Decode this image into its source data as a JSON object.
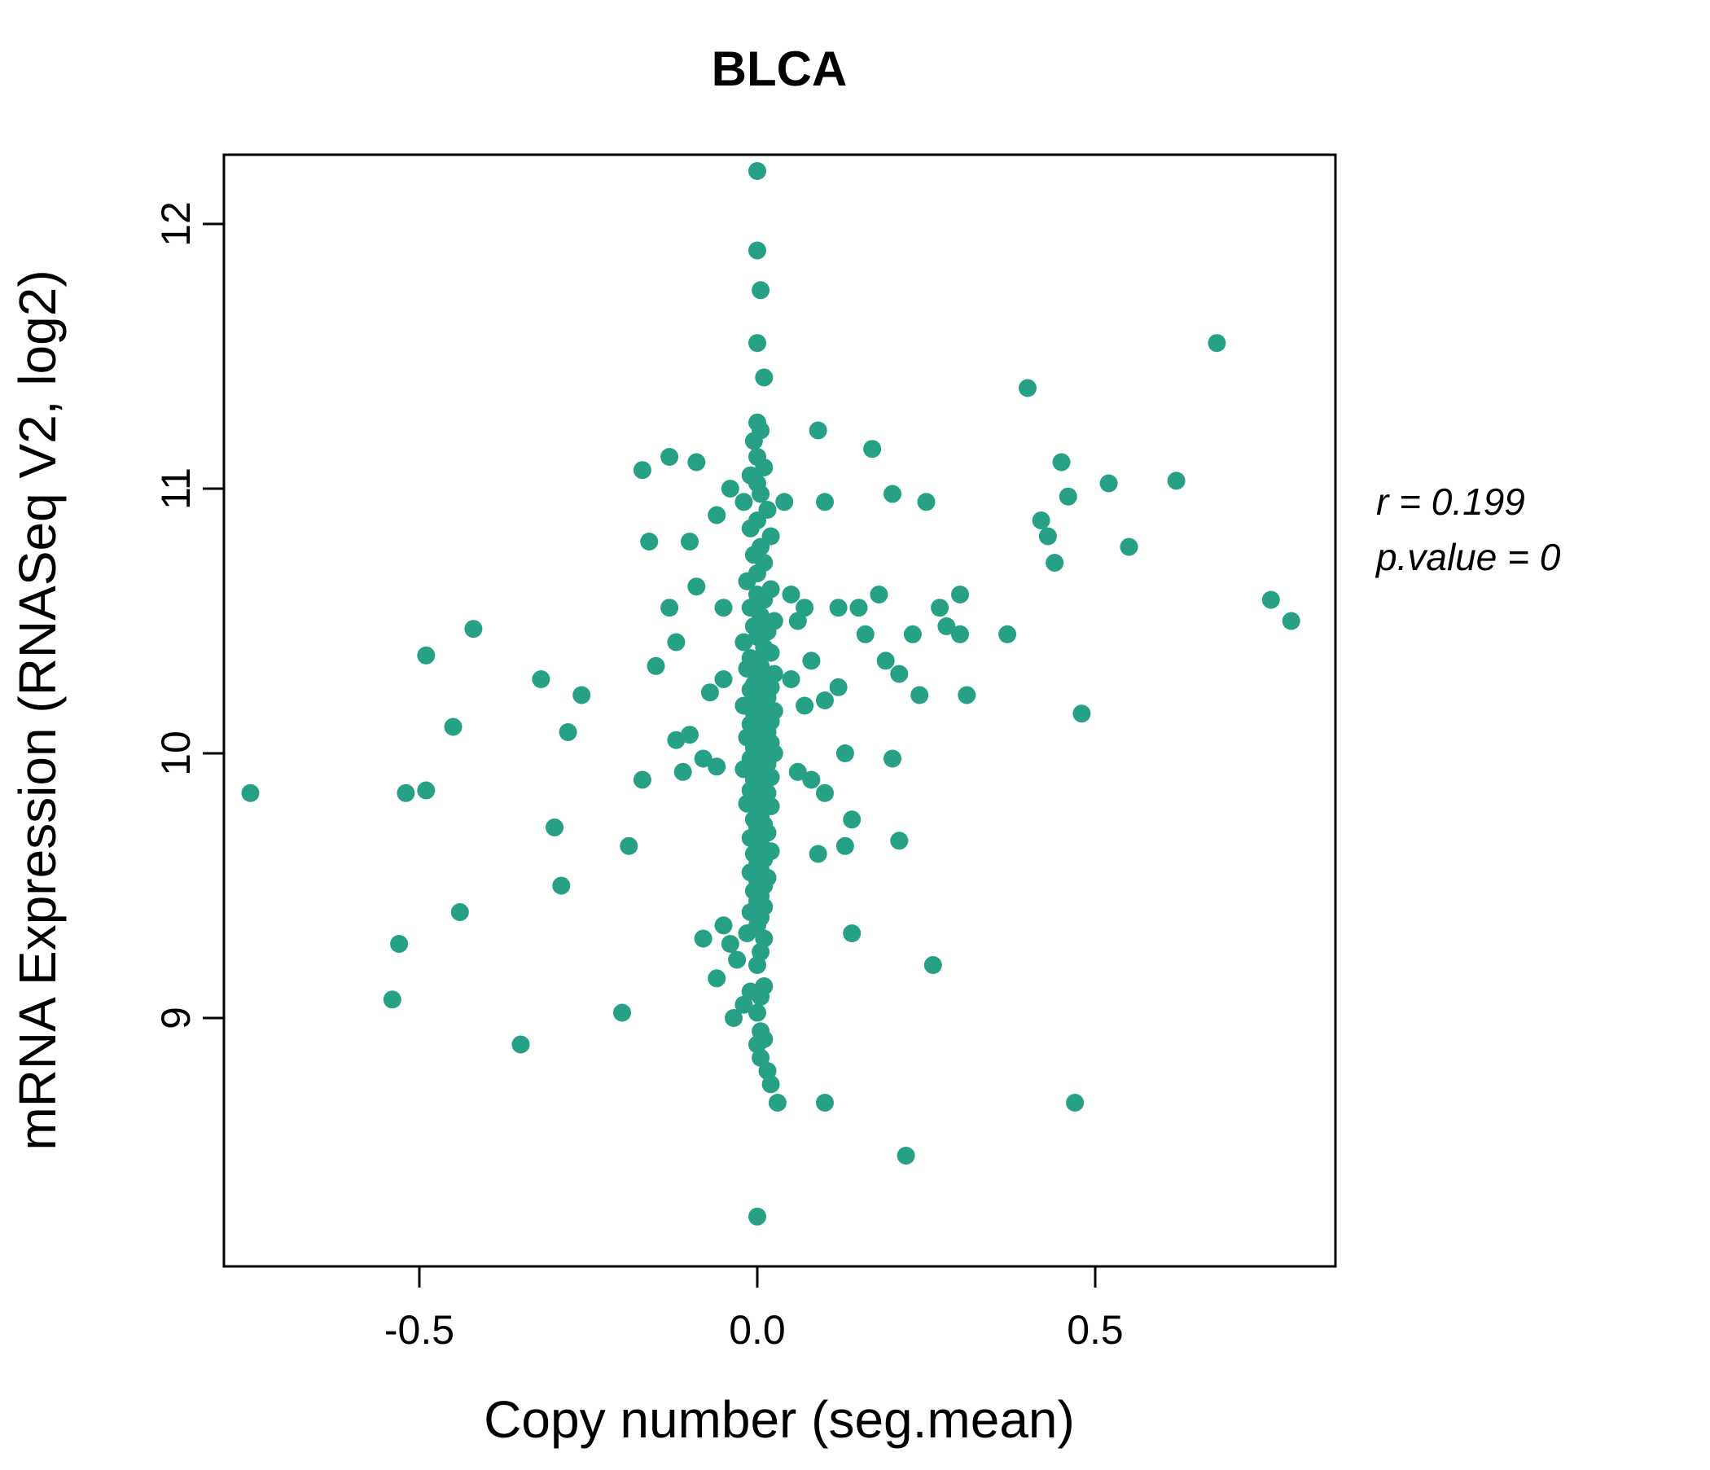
{
  "chart_data": {
    "type": "scatter",
    "title": "BLCA",
    "title_color": "#26a185",
    "xlabel": "Copy number (seg.mean)",
    "ylabel": "mRNA Expression (RNASeq V2, log2)",
    "x_ticks": [
      -0.5,
      0.0,
      0.5
    ],
    "x_tick_labels": [
      "-0.5",
      "0.0",
      "0.5"
    ],
    "y_ticks": [
      9,
      10,
      11,
      12
    ],
    "y_tick_labels": [
      "9",
      "10",
      "11",
      "12"
    ],
    "xlim": [
      -0.79,
      0.86
    ],
    "ylim": [
      8.06,
      12.26
    ],
    "grid": false,
    "legend": "none",
    "point_color": "#26a185",
    "annotation": {
      "r_label": "r = 0.199",
      "p_label": "p.value = 0"
    },
    "points": [
      [
        0,
        12.2
      ],
      [
        0,
        11.9
      ],
      [
        0.005,
        11.75
      ],
      [
        0,
        11.55
      ],
      [
        0.01,
        11.42
      ],
      [
        0,
        11.25
      ],
      [
        0.005,
        11.22
      ],
      [
        -0.005,
        11.18
      ],
      [
        0,
        11.12
      ],
      [
        0.01,
        11.08
      ],
      [
        -0.01,
        11.05
      ],
      [
        0,
        11.02
      ],
      [
        0.005,
        10.98
      ],
      [
        -0.02,
        10.95
      ],
      [
        0.015,
        10.92
      ],
      [
        0,
        10.88
      ],
      [
        -0.01,
        10.85
      ],
      [
        0.02,
        10.82
      ],
      [
        0.005,
        10.78
      ],
      [
        -0.005,
        10.75
      ],
      [
        0.01,
        10.72
      ],
      [
        0,
        10.68
      ],
      [
        -0.015,
        10.65
      ],
      [
        0.02,
        10.62
      ],
      [
        0,
        10.6
      ],
      [
        0.01,
        10.58
      ],
      [
        -0.01,
        10.55
      ],
      [
        0.005,
        10.52
      ],
      [
        0.025,
        10.5
      ],
      [
        -0.005,
        10.48
      ],
      [
        0.015,
        10.46
      ],
      [
        0,
        10.44
      ],
      [
        -0.02,
        10.42
      ],
      [
        0.01,
        10.4
      ],
      [
        0.02,
        10.38
      ],
      [
        -0.01,
        10.36
      ],
      [
        0,
        10.35
      ],
      [
        0.005,
        10.33
      ],
      [
        -0.015,
        10.32
      ],
      [
        0.025,
        10.3
      ],
      [
        0,
        10.29
      ],
      [
        0.01,
        10.28
      ],
      [
        -0.005,
        10.26
      ],
      [
        0.02,
        10.25
      ],
      [
        -0.01,
        10.24
      ],
      [
        0.005,
        10.22
      ],
      [
        0.015,
        10.21
      ],
      [
        0,
        10.2
      ],
      [
        -0.02,
        10.18
      ],
      [
        0.01,
        10.17
      ],
      [
        0.025,
        10.16
      ],
      [
        -0.005,
        10.15
      ],
      [
        0,
        10.14
      ],
      [
        0.02,
        10.12
      ],
      [
        -0.01,
        10.11
      ],
      [
        0.005,
        10.1
      ],
      [
        0.015,
        10.08
      ],
      [
        0,
        10.07
      ],
      [
        -0.015,
        10.06
      ],
      [
        0.01,
        10.05
      ],
      [
        0.02,
        10.04
      ],
      [
        -0.005,
        10.02
      ],
      [
        0,
        10.01
      ],
      [
        0.025,
        10.0
      ],
      [
        -0.01,
        9.98
      ],
      [
        0.005,
        9.97
      ],
      [
        0.015,
        9.96
      ],
      [
        0,
        9.95
      ],
      [
        -0.02,
        9.94
      ],
      [
        0.01,
        9.92
      ],
      [
        0.02,
        9.91
      ],
      [
        -0.005,
        9.9
      ],
      [
        0,
        9.88
      ],
      [
        0.005,
        9.87
      ],
      [
        -0.01,
        9.86
      ],
      [
        0.015,
        9.85
      ],
      [
        0,
        9.84
      ],
      [
        0.01,
        9.82
      ],
      [
        -0.015,
        9.81
      ],
      [
        0.02,
        9.8
      ],
      [
        0,
        9.78
      ],
      [
        0.005,
        9.76
      ],
      [
        -0.005,
        9.75
      ],
      [
        0.01,
        9.73
      ],
      [
        0,
        9.72
      ],
      [
        0.015,
        9.7
      ],
      [
        -0.01,
        9.68
      ],
      [
        0.005,
        9.66
      ],
      [
        0,
        9.65
      ],
      [
        0.02,
        9.63
      ],
      [
        -0.005,
        9.62
      ],
      [
        0.01,
        9.6
      ],
      [
        0,
        9.58
      ],
      [
        0.005,
        9.56
      ],
      [
        -0.01,
        9.55
      ],
      [
        0.015,
        9.53
      ],
      [
        0,
        9.52
      ],
      [
        0.01,
        9.5
      ],
      [
        -0.005,
        9.48
      ],
      [
        0.005,
        9.46
      ],
      [
        0,
        9.44
      ],
      [
        0.01,
        9.42
      ],
      [
        -0.01,
        9.4
      ],
      [
        0.005,
        9.38
      ],
      [
        0,
        9.35
      ],
      [
        -0.015,
        9.32
      ],
      [
        0.01,
        9.3
      ],
      [
        -0.04,
        9.28
      ],
      [
        0.005,
        9.25
      ],
      [
        -0.03,
        9.22
      ],
      [
        0,
        9.2
      ],
      [
        -0.06,
        9.15
      ],
      [
        0.01,
        9.12
      ],
      [
        -0.01,
        9.1
      ],
      [
        0.005,
        9.08
      ],
      [
        -0.02,
        9.05
      ],
      [
        0,
        9.02
      ],
      [
        -0.035,
        9.0
      ],
      [
        0.005,
        8.95
      ],
      [
        0.01,
        8.92
      ],
      [
        0,
        8.9
      ],
      [
        0.005,
        8.85
      ],
      [
        0.015,
        8.8
      ],
      [
        0.02,
        8.75
      ],
      [
        0.03,
        8.68
      ],
      [
        0,
        8.25
      ],
      [
        -0.75,
        9.85
      ],
      [
        -0.54,
        9.07
      ],
      [
        -0.53,
        9.28
      ],
      [
        -0.52,
        9.85
      ],
      [
        -0.49,
        9.86
      ],
      [
        -0.49,
        10.37
      ],
      [
        -0.45,
        10.1
      ],
      [
        -0.44,
        9.4
      ],
      [
        -0.42,
        10.47
      ],
      [
        -0.35,
        8.9
      ],
      [
        -0.32,
        10.28
      ],
      [
        -0.3,
        9.72
      ],
      [
        -0.29,
        9.5
      ],
      [
        -0.28,
        10.08
      ],
      [
        -0.26,
        10.22
      ],
      [
        -0.2,
        9.02
      ],
      [
        -0.19,
        9.65
      ],
      [
        -0.17,
        11.07
      ],
      [
        -0.17,
        9.9
      ],
      [
        -0.16,
        10.8
      ],
      [
        -0.15,
        10.33
      ],
      [
        -0.13,
        11.12
      ],
      [
        -0.13,
        10.55
      ],
      [
        -0.12,
        10.42
      ],
      [
        -0.12,
        10.05
      ],
      [
        -0.11,
        9.93
      ],
      [
        -0.1,
        10.8
      ],
      [
        -0.1,
        10.07
      ],
      [
        -0.09,
        11.1
      ],
      [
        -0.09,
        10.63
      ],
      [
        -0.08,
        9.3
      ],
      [
        -0.08,
        9.98
      ],
      [
        -0.07,
        10.23
      ],
      [
        -0.06,
        10.9
      ],
      [
        -0.06,
        9.95
      ],
      [
        -0.05,
        10.55
      ],
      [
        -0.05,
        10.28
      ],
      [
        -0.05,
        9.35
      ],
      [
        -0.04,
        11.0
      ],
      [
        0.04,
        10.95
      ],
      [
        0.05,
        10.6
      ],
      [
        0.05,
        10.28
      ],
      [
        0.06,
        10.5
      ],
      [
        0.06,
        9.93
      ],
      [
        0.07,
        10.55
      ],
      [
        0.07,
        10.18
      ],
      [
        0.08,
        10.35
      ],
      [
        0.08,
        9.9
      ],
      [
        0.09,
        11.22
      ],
      [
        0.09,
        9.62
      ],
      [
        0.1,
        10.95
      ],
      [
        0.1,
        10.2
      ],
      [
        0.1,
        9.85
      ],
      [
        0.1,
        8.68
      ],
      [
        0.12,
        10.55
      ],
      [
        0.12,
        10.25
      ],
      [
        0.13,
        10.0
      ],
      [
        0.13,
        9.65
      ],
      [
        0.14,
        9.75
      ],
      [
        0.14,
        9.32
      ],
      [
        0.15,
        10.55
      ],
      [
        0.16,
        10.45
      ],
      [
        0.17,
        11.15
      ],
      [
        0.18,
        10.6
      ],
      [
        0.19,
        10.35
      ],
      [
        0.2,
        10.98
      ],
      [
        0.2,
        9.98
      ],
      [
        0.21,
        10.3
      ],
      [
        0.21,
        9.67
      ],
      [
        0.22,
        8.48
      ],
      [
        0.23,
        10.45
      ],
      [
        0.24,
        10.22
      ],
      [
        0.25,
        10.95
      ],
      [
        0.26,
        9.2
      ],
      [
        0.27,
        10.55
      ],
      [
        0.28,
        10.48
      ],
      [
        0.3,
        10.6
      ],
      [
        0.3,
        10.45
      ],
      [
        0.31,
        10.22
      ],
      [
        0.37,
        10.45
      ],
      [
        0.4,
        11.38
      ],
      [
        0.42,
        10.88
      ],
      [
        0.43,
        10.82
      ],
      [
        0.44,
        10.72
      ],
      [
        0.45,
        11.1
      ],
      [
        0.46,
        10.97
      ],
      [
        0.47,
        8.68
      ],
      [
        0.48,
        10.15
      ],
      [
        0.52,
        11.02
      ],
      [
        0.55,
        10.78
      ],
      [
        0.62,
        11.03
      ],
      [
        0.68,
        11.55
      ],
      [
        0.76,
        10.58
      ],
      [
        0.79,
        10.5
      ]
    ]
  }
}
